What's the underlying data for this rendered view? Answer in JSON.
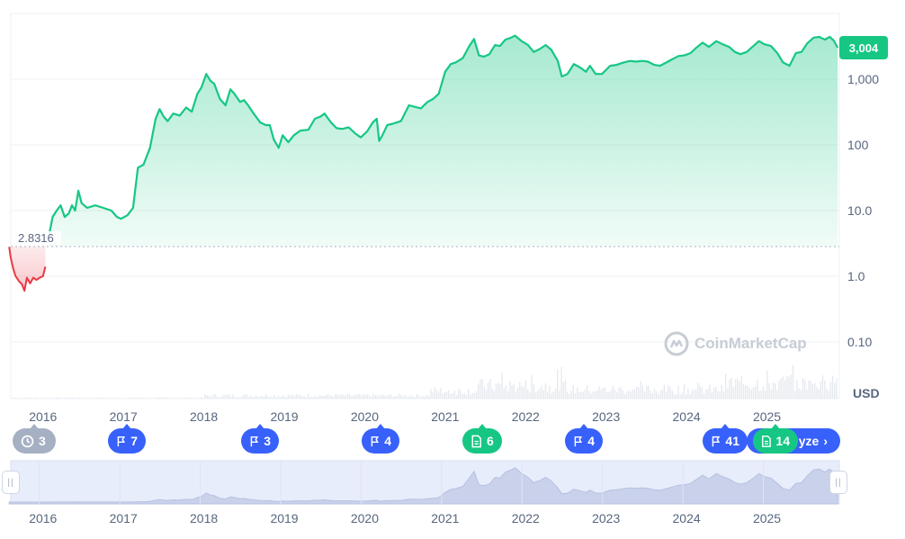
{
  "chart_data": {
    "type": "area",
    "scale": "log",
    "currency": "USD",
    "current_price_label": "3,004",
    "start_price_label": "2.8316",
    "y_ticks": [
      {
        "value": 0.1,
        "label": "0.10"
      },
      {
        "value": 1,
        "label": "1.0"
      },
      {
        "value": 10,
        "label": "10.0"
      },
      {
        "value": 100,
        "label": "100"
      },
      {
        "value": 1000,
        "label": "1,000"
      }
    ],
    "y_axis_unit": "USD",
    "x_tick_labels": [
      "2016",
      "2017",
      "2018",
      "2019",
      "2020",
      "2021",
      "2022",
      "2023",
      "2024",
      "2025"
    ],
    "baseline_price": 2.8316,
    "series": [
      {
        "values": [
          [
            2015.58,
            2.8
          ],
          [
            2015.6,
            1.9
          ],
          [
            2015.63,
            1.3
          ],
          [
            2015.66,
            1.0
          ],
          [
            2015.7,
            0.85
          ],
          [
            2015.74,
            0.75
          ],
          [
            2015.77,
            0.6
          ],
          [
            2015.8,
            0.95
          ],
          [
            2015.84,
            0.78
          ],
          [
            2015.88,
            0.95
          ],
          [
            2015.92,
            0.88
          ],
          [
            2015.96,
            0.95
          ],
          [
            2016.0,
            1.0
          ],
          [
            2016.03,
            1.4
          ],
          [
            2016.08,
            4.5
          ],
          [
            2016.12,
            8
          ],
          [
            2016.17,
            10
          ],
          [
            2016.22,
            12
          ],
          [
            2016.27,
            8
          ],
          [
            2016.32,
            9
          ],
          [
            2016.36,
            12
          ],
          [
            2016.4,
            10
          ],
          [
            2016.44,
            20
          ],
          [
            2016.48,
            13
          ],
          [
            2016.55,
            11
          ],
          [
            2016.65,
            12
          ],
          [
            2016.75,
            11
          ],
          [
            2016.85,
            10
          ],
          [
            2016.92,
            8
          ],
          [
            2016.97,
            7.5
          ],
          [
            2017.05,
            8.5
          ],
          [
            2017.12,
            11
          ],
          [
            2017.18,
            45
          ],
          [
            2017.25,
            50
          ],
          [
            2017.33,
            90
          ],
          [
            2017.4,
            250
          ],
          [
            2017.45,
            350
          ],
          [
            2017.5,
            270
          ],
          [
            2017.55,
            230
          ],
          [
            2017.62,
            300
          ],
          [
            2017.7,
            280
          ],
          [
            2017.78,
            370
          ],
          [
            2017.85,
            320
          ],
          [
            2017.92,
            600
          ],
          [
            2017.97,
            750
          ],
          [
            2018.03,
            1200
          ],
          [
            2018.08,
            950
          ],
          [
            2018.13,
            850
          ],
          [
            2018.2,
            500
          ],
          [
            2018.27,
            400
          ],
          [
            2018.33,
            700
          ],
          [
            2018.38,
            600
          ],
          [
            2018.45,
            450
          ],
          [
            2018.5,
            480
          ],
          [
            2018.55,
            400
          ],
          [
            2018.62,
            300
          ],
          [
            2018.7,
            220
          ],
          [
            2018.77,
            200
          ],
          [
            2018.82,
            200
          ],
          [
            2018.87,
            120
          ],
          [
            2018.93,
            90
          ],
          [
            2018.98,
            140
          ],
          [
            2019.05,
            110
          ],
          [
            2019.12,
            140
          ],
          [
            2019.2,
            165
          ],
          [
            2019.3,
            170
          ],
          [
            2019.38,
            250
          ],
          [
            2019.45,
            270
          ],
          [
            2019.5,
            300
          ],
          [
            2019.58,
            220
          ],
          [
            2019.65,
            180
          ],
          [
            2019.72,
            175
          ],
          [
            2019.8,
            185
          ],
          [
            2019.88,
            150
          ],
          [
            2019.95,
            130
          ],
          [
            2020.03,
            160
          ],
          [
            2020.1,
            220
          ],
          [
            2020.15,
            250
          ],
          [
            2020.18,
            115
          ],
          [
            2020.22,
            140
          ],
          [
            2020.28,
            200
          ],
          [
            2020.35,
            210
          ],
          [
            2020.45,
            230
          ],
          [
            2020.55,
            400
          ],
          [
            2020.62,
            380
          ],
          [
            2020.7,
            360
          ],
          [
            2020.78,
            450
          ],
          [
            2020.85,
            500
          ],
          [
            2020.92,
            600
          ],
          [
            2021.0,
            1300
          ],
          [
            2021.07,
            1700
          ],
          [
            2021.13,
            1800
          ],
          [
            2021.22,
            2100
          ],
          [
            2021.3,
            3200
          ],
          [
            2021.36,
            4100
          ],
          [
            2021.42,
            2300
          ],
          [
            2021.48,
            2200
          ],
          [
            2021.55,
            2400
          ],
          [
            2021.62,
            3300
          ],
          [
            2021.68,
            3200
          ],
          [
            2021.75,
            4000
          ],
          [
            2021.82,
            4300
          ],
          [
            2021.87,
            4600
          ],
          [
            2021.95,
            3800
          ],
          [
            2022.03,
            3300
          ],
          [
            2022.1,
            2600
          ],
          [
            2022.18,
            2900
          ],
          [
            2022.25,
            3300
          ],
          [
            2022.32,
            2800
          ],
          [
            2022.4,
            1900
          ],
          [
            2022.45,
            1100
          ],
          [
            2022.52,
            1200
          ],
          [
            2022.6,
            1700
          ],
          [
            2022.68,
            1500
          ],
          [
            2022.75,
            1300
          ],
          [
            2022.8,
            1600
          ],
          [
            2022.87,
            1200
          ],
          [
            2022.95,
            1200
          ],
          [
            2023.05,
            1600
          ],
          [
            2023.13,
            1650
          ],
          [
            2023.22,
            1800
          ],
          [
            2023.3,
            1900
          ],
          [
            2023.37,
            1850
          ],
          [
            2023.45,
            1900
          ],
          [
            2023.52,
            1850
          ],
          [
            2023.6,
            1650
          ],
          [
            2023.67,
            1600
          ],
          [
            2023.75,
            1800
          ],
          [
            2023.82,
            2000
          ],
          [
            2023.9,
            2250
          ],
          [
            2023.97,
            2300
          ],
          [
            2024.05,
            2500
          ],
          [
            2024.12,
            3000
          ],
          [
            2024.2,
            3600
          ],
          [
            2024.28,
            3100
          ],
          [
            2024.37,
            3800
          ],
          [
            2024.45,
            3400
          ],
          [
            2024.53,
            3100
          ],
          [
            2024.6,
            2600
          ],
          [
            2024.67,
            2400
          ],
          [
            2024.75,
            2600
          ],
          [
            2024.82,
            3100
          ],
          [
            2024.9,
            3800
          ],
          [
            2024.97,
            3400
          ],
          [
            2025.05,
            3200
          ],
          [
            2025.13,
            2500
          ],
          [
            2025.2,
            1800
          ],
          [
            2025.28,
            1600
          ],
          [
            2025.36,
            2500
          ],
          [
            2025.43,
            2600
          ],
          [
            2025.5,
            3500
          ],
          [
            2025.58,
            4300
          ],
          [
            2025.65,
            4400
          ],
          [
            2025.72,
            4000
          ],
          [
            2025.78,
            4400
          ],
          [
            2025.83,
            3900
          ],
          [
            2025.88,
            3004
          ]
        ]
      }
    ],
    "legend": "none",
    "grid": true
  },
  "markers": [
    {
      "kind": "clock",
      "count": "3",
      "color": "grey"
    },
    {
      "kind": "flag",
      "count": "7",
      "color": "blue"
    },
    {
      "kind": "flag",
      "count": "3",
      "color": "blue"
    },
    {
      "kind": "flag",
      "count": "4",
      "color": "blue"
    },
    {
      "kind": "doc",
      "count": "6",
      "color": "green"
    },
    {
      "kind": "flag",
      "count": "4",
      "color": "blue"
    },
    {
      "kind": "flag",
      "count": "41",
      "color": "blue"
    },
    {
      "kind": "doc",
      "count": "14",
      "color": "green"
    }
  ],
  "analyze_label": "yze",
  "watermark": "CoinMarketCap",
  "navigator": {
    "x_tick_labels": [
      "2016",
      "2017",
      "2018",
      "2019",
      "2020",
      "2021",
      "2022",
      "2023",
      "2024",
      "2025"
    ],
    "left_handle": "||",
    "right_handle": "||"
  },
  "colors": {
    "up": "#16c784",
    "down": "#ea3943",
    "accent": "#3861fb",
    "grey": "#a6b0c3"
  }
}
